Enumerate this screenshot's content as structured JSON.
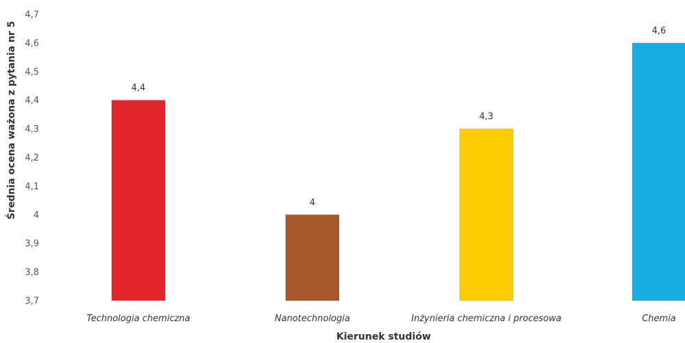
{
  "chart_data": {
    "type": "bar",
    "title": "",
    "xlabel": "Kierunek studiów",
    "ylabel": "Średnia ocena ważona z pytania nr 5",
    "ylim": [
      3.7,
      4.7
    ],
    "yticks": [
      "3,7",
      "3,8",
      "3,9",
      "4",
      "4,1",
      "4,2",
      "4,3",
      "4,4",
      "4,5",
      "4,6",
      "4,7"
    ],
    "categories": [
      "Technologia chemiczna",
      "Nanotechnologia",
      "Inżynieria chemiczna i procesowa",
      "Chemia"
    ],
    "values": [
      4.4,
      4.0,
      4.3,
      4.6
    ],
    "value_labels": [
      "4,4",
      "4",
      "4,3",
      "4,6"
    ],
    "colors": [
      "#e2262c",
      "#a5582b",
      "#fdcc00",
      "#19ade2"
    ],
    "grid": false,
    "legend": "none"
  }
}
